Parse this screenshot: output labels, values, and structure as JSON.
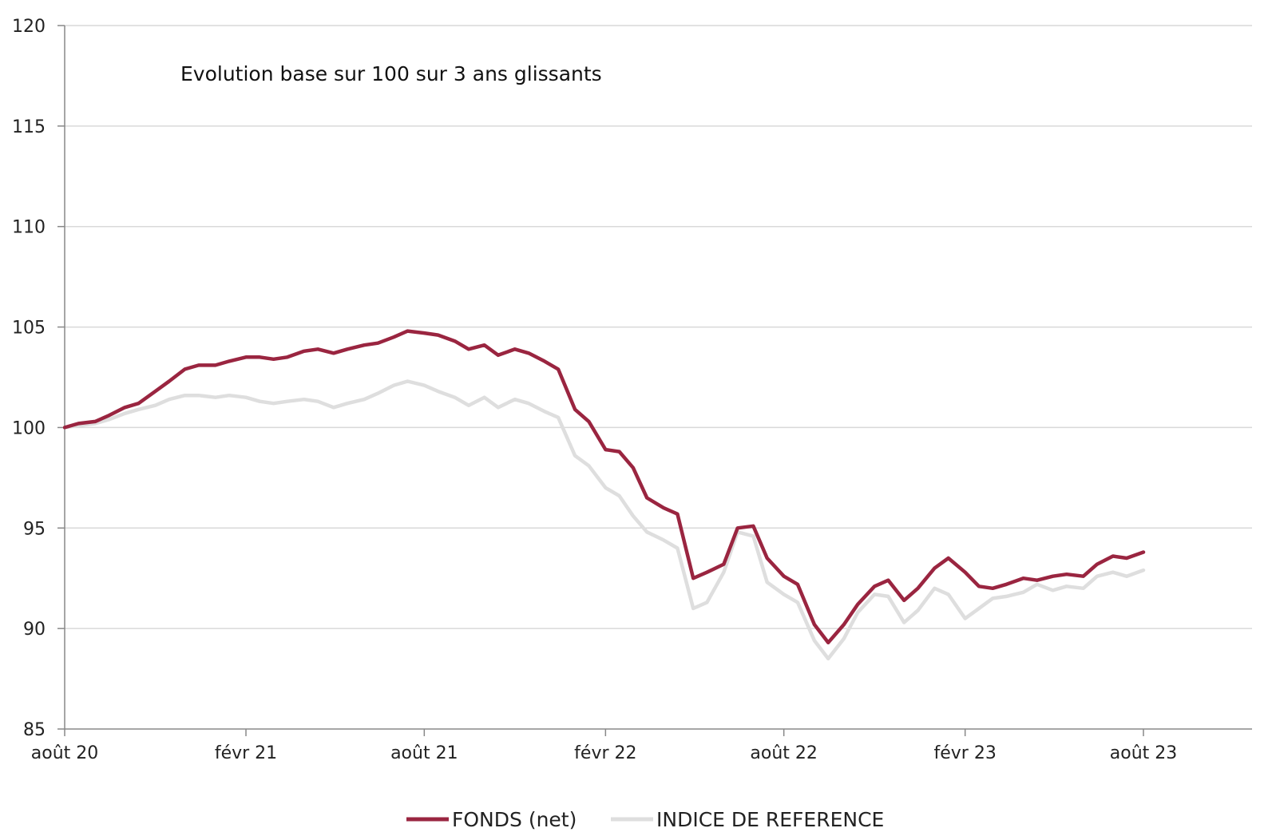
{
  "chart_data": {
    "type": "line",
    "title": "Evolution base sur 100 sur 3 ans glissants",
    "xlabel": "",
    "ylabel": "",
    "ylim": [
      85,
      120
    ],
    "yticks": [
      85,
      90,
      95,
      100,
      105,
      110,
      115,
      120
    ],
    "grid": true,
    "legend_position": "bottom",
    "x_tick_labels": [
      "août 20",
      "févr 21",
      "août 21",
      "févr 22",
      "août 22",
      "févr 23",
      "août 23"
    ],
    "x_tick_dates": [
      "2020-08",
      "2021-02",
      "2021-08",
      "2022-02",
      "2022-08",
      "2023-02",
      "2023-08"
    ],
    "x_end_date": "2023-10-15",
    "colors": {
      "fonds": "#9a2540",
      "indice": "#dedede",
      "grid": "#d9d9d9",
      "axis": "#888888"
    },
    "series": [
      {
        "name": "FONDS (net)",
        "color": "#9a2540",
        "points": [
          [
            "2020-08-01",
            100.0
          ],
          [
            "2020-08-15",
            100.2
          ],
          [
            "2020-09-01",
            100.3
          ],
          [
            "2020-09-15",
            100.6
          ],
          [
            "2020-10-01",
            101.0
          ],
          [
            "2020-10-15",
            101.2
          ],
          [
            "2020-11-01",
            101.8
          ],
          [
            "2020-11-15",
            102.3
          ],
          [
            "2020-12-01",
            102.9
          ],
          [
            "2020-12-15",
            103.1
          ],
          [
            "2021-01-01",
            103.1
          ],
          [
            "2021-01-15",
            103.3
          ],
          [
            "2021-02-01",
            103.5
          ],
          [
            "2021-02-15",
            103.5
          ],
          [
            "2021-03-01",
            103.4
          ],
          [
            "2021-03-15",
            103.5
          ],
          [
            "2021-04-01",
            103.8
          ],
          [
            "2021-04-15",
            103.9
          ],
          [
            "2021-05-01",
            103.7
          ],
          [
            "2021-05-15",
            103.9
          ],
          [
            "2021-06-01",
            104.1
          ],
          [
            "2021-06-15",
            104.2
          ],
          [
            "2021-07-01",
            104.5
          ],
          [
            "2021-07-15",
            104.8
          ],
          [
            "2021-08-01",
            104.7
          ],
          [
            "2021-08-15",
            104.6
          ],
          [
            "2021-09-01",
            104.3
          ],
          [
            "2021-09-15",
            103.9
          ],
          [
            "2021-10-01",
            104.1
          ],
          [
            "2021-10-15",
            103.6
          ],
          [
            "2021-11-01",
            103.9
          ],
          [
            "2021-11-15",
            103.7
          ],
          [
            "2021-12-01",
            103.3
          ],
          [
            "2021-12-15",
            102.9
          ],
          [
            "2022-01-01",
            100.9
          ],
          [
            "2022-01-15",
            100.3
          ],
          [
            "2022-02-01",
            98.9
          ],
          [
            "2022-02-15",
            98.8
          ],
          [
            "2022-03-01",
            98.0
          ],
          [
            "2022-03-15",
            96.5
          ],
          [
            "2022-04-01",
            96.0
          ],
          [
            "2022-04-15",
            95.7
          ],
          [
            "2022-05-01",
            92.5
          ],
          [
            "2022-05-15",
            92.8
          ],
          [
            "2022-06-01",
            93.2
          ],
          [
            "2022-06-15",
            95.0
          ],
          [
            "2022-07-01",
            95.1
          ],
          [
            "2022-07-15",
            93.5
          ],
          [
            "2022-08-01",
            92.6
          ],
          [
            "2022-08-15",
            92.2
          ],
          [
            "2022-09-01",
            90.2
          ],
          [
            "2022-09-15",
            89.3
          ],
          [
            "2022-10-01",
            90.2
          ],
          [
            "2022-10-15",
            91.2
          ],
          [
            "2022-11-01",
            92.1
          ],
          [
            "2022-11-15",
            92.4
          ],
          [
            "2022-12-01",
            91.4
          ],
          [
            "2022-12-15",
            92.0
          ],
          [
            "2023-01-01",
            93.0
          ],
          [
            "2023-01-15",
            93.5
          ],
          [
            "2023-02-01",
            92.8
          ],
          [
            "2023-02-15",
            92.1
          ],
          [
            "2023-03-01",
            92.0
          ],
          [
            "2023-03-15",
            92.2
          ],
          [
            "2023-04-01",
            92.5
          ],
          [
            "2023-04-15",
            92.4
          ],
          [
            "2023-05-01",
            92.6
          ],
          [
            "2023-05-15",
            92.7
          ],
          [
            "2023-06-01",
            92.6
          ],
          [
            "2023-06-15",
            93.2
          ],
          [
            "2023-07-01",
            93.6
          ],
          [
            "2023-07-15",
            93.5
          ],
          [
            "2023-08-01",
            93.8
          ]
        ]
      },
      {
        "name": "INDICE DE REFERENCE",
        "color": "#dedede",
        "points": [
          [
            "2020-08-01",
            100.0
          ],
          [
            "2020-08-15",
            100.1
          ],
          [
            "2020-09-01",
            100.2
          ],
          [
            "2020-09-15",
            100.4
          ],
          [
            "2020-10-01",
            100.7
          ],
          [
            "2020-10-15",
            100.9
          ],
          [
            "2020-11-01",
            101.1
          ],
          [
            "2020-11-15",
            101.4
          ],
          [
            "2020-12-01",
            101.6
          ],
          [
            "2020-12-15",
            101.6
          ],
          [
            "2021-01-01",
            101.5
          ],
          [
            "2021-01-15",
            101.6
          ],
          [
            "2021-02-01",
            101.5
          ],
          [
            "2021-02-15",
            101.3
          ],
          [
            "2021-03-01",
            101.2
          ],
          [
            "2021-03-15",
            101.3
          ],
          [
            "2021-04-01",
            101.4
          ],
          [
            "2021-04-15",
            101.3
          ],
          [
            "2021-05-01",
            101.0
          ],
          [
            "2021-05-15",
            101.2
          ],
          [
            "2021-06-01",
            101.4
          ],
          [
            "2021-06-15",
            101.7
          ],
          [
            "2021-07-01",
            102.1
          ],
          [
            "2021-07-15",
            102.3
          ],
          [
            "2021-08-01",
            102.1
          ],
          [
            "2021-08-15",
            101.8
          ],
          [
            "2021-09-01",
            101.5
          ],
          [
            "2021-09-15",
            101.1
          ],
          [
            "2021-10-01",
            101.5
          ],
          [
            "2021-10-15",
            101.0
          ],
          [
            "2021-11-01",
            101.4
          ],
          [
            "2021-11-15",
            101.2
          ],
          [
            "2021-12-01",
            100.8
          ],
          [
            "2021-12-15",
            100.5
          ],
          [
            "2022-01-01",
            98.6
          ],
          [
            "2022-01-15",
            98.1
          ],
          [
            "2022-02-01",
            97.0
          ],
          [
            "2022-02-15",
            96.6
          ],
          [
            "2022-03-01",
            95.6
          ],
          [
            "2022-03-15",
            94.8
          ],
          [
            "2022-04-01",
            94.4
          ],
          [
            "2022-04-15",
            94.0
          ],
          [
            "2022-05-01",
            91.0
          ],
          [
            "2022-05-15",
            91.3
          ],
          [
            "2022-06-01",
            92.8
          ],
          [
            "2022-06-15",
            94.8
          ],
          [
            "2022-07-01",
            94.6
          ],
          [
            "2022-07-15",
            92.3
          ],
          [
            "2022-08-01",
            91.7
          ],
          [
            "2022-08-15",
            91.3
          ],
          [
            "2022-09-01",
            89.4
          ],
          [
            "2022-09-15",
            88.5
          ],
          [
            "2022-10-01",
            89.5
          ],
          [
            "2022-10-15",
            90.8
          ],
          [
            "2022-11-01",
            91.7
          ],
          [
            "2022-11-15",
            91.6
          ],
          [
            "2022-12-01",
            90.3
          ],
          [
            "2022-12-15",
            90.9
          ],
          [
            "2023-01-01",
            92.0
          ],
          [
            "2023-01-15",
            91.7
          ],
          [
            "2023-02-01",
            90.5
          ],
          [
            "2023-02-15",
            91.0
          ],
          [
            "2023-03-01",
            91.5
          ],
          [
            "2023-03-15",
            91.6
          ],
          [
            "2023-04-01",
            91.8
          ],
          [
            "2023-04-15",
            92.2
          ],
          [
            "2023-05-01",
            91.9
          ],
          [
            "2023-05-15",
            92.1
          ],
          [
            "2023-06-01",
            92.0
          ],
          [
            "2023-06-15",
            92.6
          ],
          [
            "2023-07-01",
            92.8
          ],
          [
            "2023-07-15",
            92.6
          ],
          [
            "2023-08-01",
            92.9
          ]
        ]
      }
    ]
  }
}
